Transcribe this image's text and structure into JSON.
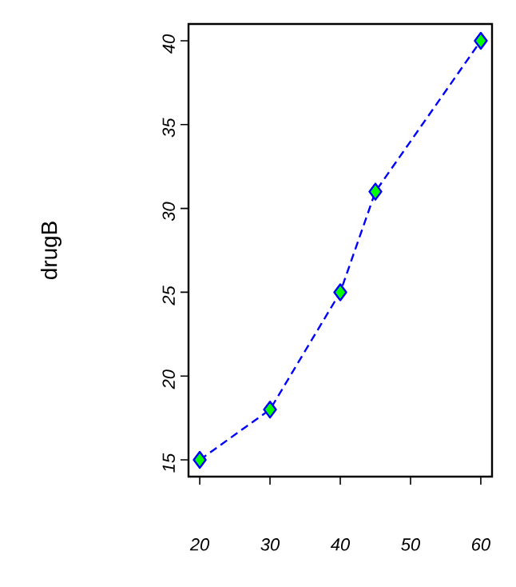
{
  "chart_data": {
    "type": "line",
    "ylabel": "drugB",
    "x": [
      20,
      30,
      40,
      45,
      60
    ],
    "series": [
      {
        "color": "#0000ff",
        "values": [
          15,
          18,
          25,
          31,
          40
        ]
      }
    ],
    "xlim": [
      18.4,
      61.6
    ],
    "ylim": [
      14,
      41
    ],
    "xticks": [
      20,
      30,
      40,
      50,
      60
    ],
    "yticks": [
      15,
      20,
      25,
      30,
      35,
      40
    ],
    "marker": "diamond",
    "line_style": "dashed"
  }
}
